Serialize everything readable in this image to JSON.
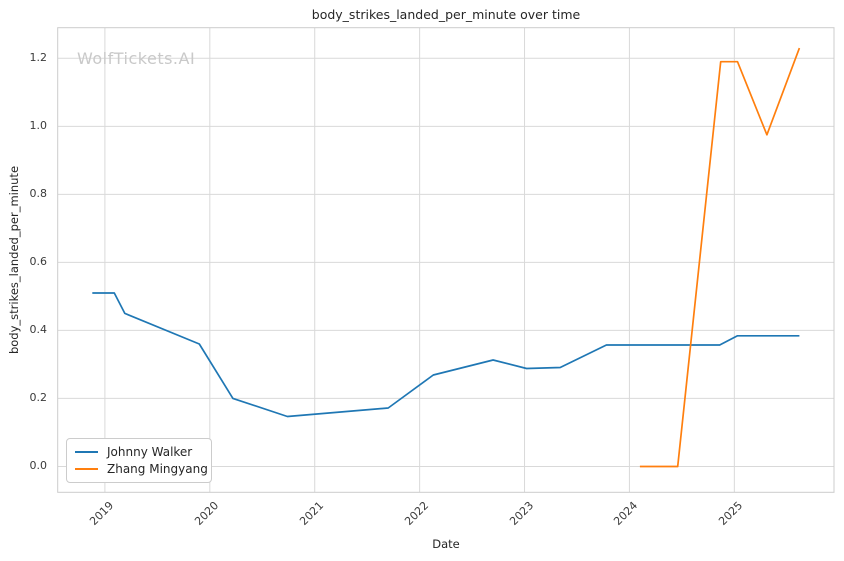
{
  "chart_data": {
    "type": "line",
    "title": "body_strikes_landed_per_minute over time",
    "xlabel": "Date",
    "ylabel": "body_strikes_landed_per_minute",
    "watermark": "WolfTickets.AI",
    "grid": true,
    "legend_position": "lower left",
    "background_color": "#ffffff",
    "grid_color": "#d9d9d9",
    "x_unit": "decimal_year",
    "xlim": [
      2018.55,
      2025.95
    ],
    "ylim": [
      -0.076,
      1.29
    ],
    "xticks": {
      "values": [
        2019,
        2020,
        2021,
        2022,
        2023,
        2024,
        2025
      ],
      "labels": [
        "2019",
        "2020",
        "2021",
        "2022",
        "2023",
        "2024",
        "2025"
      ]
    },
    "yticks": {
      "values": [
        0.0,
        0.2,
        0.4,
        0.6,
        0.8,
        1.0,
        1.2
      ],
      "labels": [
        "0.0",
        "0.2",
        "0.4",
        "0.6",
        "0.8",
        "1.0",
        "1.2"
      ]
    },
    "series": [
      {
        "name": "Johnny Walker",
        "color": "#1f77b4",
        "x": [
          2018.88,
          2019.09,
          2019.19,
          2019.9,
          2020.22,
          2020.74,
          2021.7,
          2022.13,
          2022.7,
          2023.02,
          2023.34,
          2023.78,
          2024.86,
          2025.03,
          2025.62
        ],
        "y": [
          0.51,
          0.51,
          0.45,
          0.36,
          0.2,
          0.147,
          0.172,
          0.269,
          0.313,
          0.288,
          0.291,
          0.357,
          0.357,
          0.384,
          0.384
        ]
      },
      {
        "name": "Zhang Mingyang",
        "color": "#ff7f0e",
        "x": [
          2024.1,
          2024.46,
          2024.87,
          2025.03,
          2025.31,
          2025.62
        ],
        "y": [
          0.0,
          0.0,
          1.19,
          1.19,
          0.975,
          1.23
        ]
      }
    ]
  }
}
